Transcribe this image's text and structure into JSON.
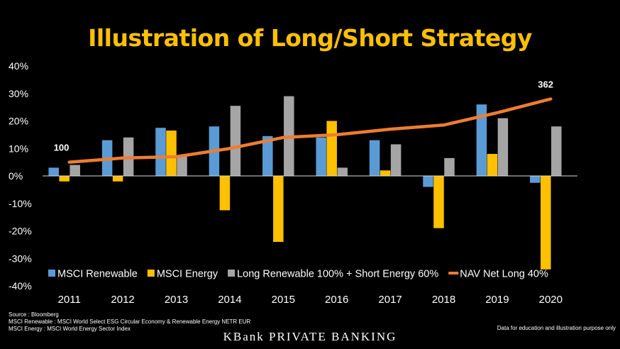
{
  "title": "Illustration of Long/Short Strategy",
  "chart_data": {
    "type": "bar",
    "title": "Illustration of Long/Short Strategy",
    "categories": [
      "2011",
      "2012",
      "2013",
      "2014",
      "2015",
      "2016",
      "2017",
      "2018",
      "2019",
      "2020"
    ],
    "ylim": [
      -40,
      40
    ],
    "yticks": [
      40,
      30,
      20,
      10,
      0,
      -10,
      -20,
      -30,
      -40
    ],
    "ytick_labels": [
      "40%",
      "30%",
      "20%",
      "10%",
      "0%",
      "-10%",
      "-20%",
      "-30%",
      "-40%"
    ],
    "grid": false,
    "legend_position": "bottom",
    "series": [
      {
        "name": "MSCI Renewable",
        "kind": "bar",
        "color": "#5b9bd5",
        "values": [
          3,
          13,
          17.5,
          18,
          14.5,
          14,
          13,
          -4,
          26,
          -2.5
        ]
      },
      {
        "name": "MSCI Energy",
        "kind": "bar",
        "color": "#ffc000",
        "values": [
          -2,
          -2,
          16.5,
          -12.5,
          -24,
          20,
          2,
          -19,
          8,
          -34
        ]
      },
      {
        "name": "Long Renewable 100% + Short Energy 60%",
        "kind": "bar",
        "color": "#a5a5a5",
        "values": [
          4,
          14,
          7,
          25.5,
          29,
          3,
          11.5,
          6.5,
          21,
          18
        ]
      },
      {
        "name": "NAV Net Long 40%",
        "kind": "line",
        "color": "#ed7d31",
        "values": [
          5,
          6.5,
          7,
          10,
          14,
          15,
          17,
          18.5,
          23,
          28
        ]
      }
    ],
    "annotations": [
      {
        "series": "NAV Net Long 40%",
        "category": "2011",
        "text": "100"
      },
      {
        "series": "NAV Net Long 40%",
        "category": "2020",
        "text": "362"
      }
    ]
  },
  "footer": {
    "sources": [
      "Source : Bloomberg",
      "MSCI Renewable : MSCI World Select ESG Circular Economy & Renewable Energy NETR EUR",
      "MSCI Energy : MSCI World Energy Sector Index"
    ],
    "disclaimer": "Data for education and illustration purpose only",
    "brand": "KBank PRIVATE BANKING"
  }
}
